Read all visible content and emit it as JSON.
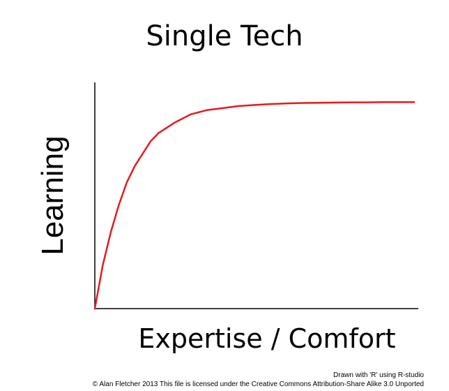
{
  "chart_data": {
    "type": "line",
    "title": "Single Tech",
    "xlabel": "Expertise / Comfort",
    "ylabel": "Learning",
    "xlim": [
      0,
      10
    ],
    "ylim": [
      0,
      1.0
    ],
    "grid": false,
    "legend": "none",
    "line_color": "#e8191c",
    "series": [
      {
        "x": [
          0,
          0.25,
          0.5,
          0.75,
          1.0,
          1.25,
          1.5,
          1.75,
          2.0,
          2.5,
          3.0,
          3.5,
          4.0,
          4.5,
          5.0,
          5.5,
          6.0,
          6.5,
          7.0,
          7.5,
          8.0,
          8.5,
          9.0,
          9.5,
          10.0
        ],
        "y": [
          0.0,
          0.21,
          0.37,
          0.5,
          0.61,
          0.69,
          0.75,
          0.81,
          0.85,
          0.9,
          0.94,
          0.96,
          0.97,
          0.98,
          0.985,
          0.99,
          0.993,
          0.995,
          0.996,
          0.997,
          0.998,
          0.998,
          0.999,
          0.999,
          0.999
        ]
      }
    ]
  },
  "credits": {
    "line1": "Drawn with 'R' using R-studio",
    "line2": "© Alan Fletcher 2013 This file is licensed under the Creative Commons Attribution-Share Alike 3.0 Unported"
  }
}
